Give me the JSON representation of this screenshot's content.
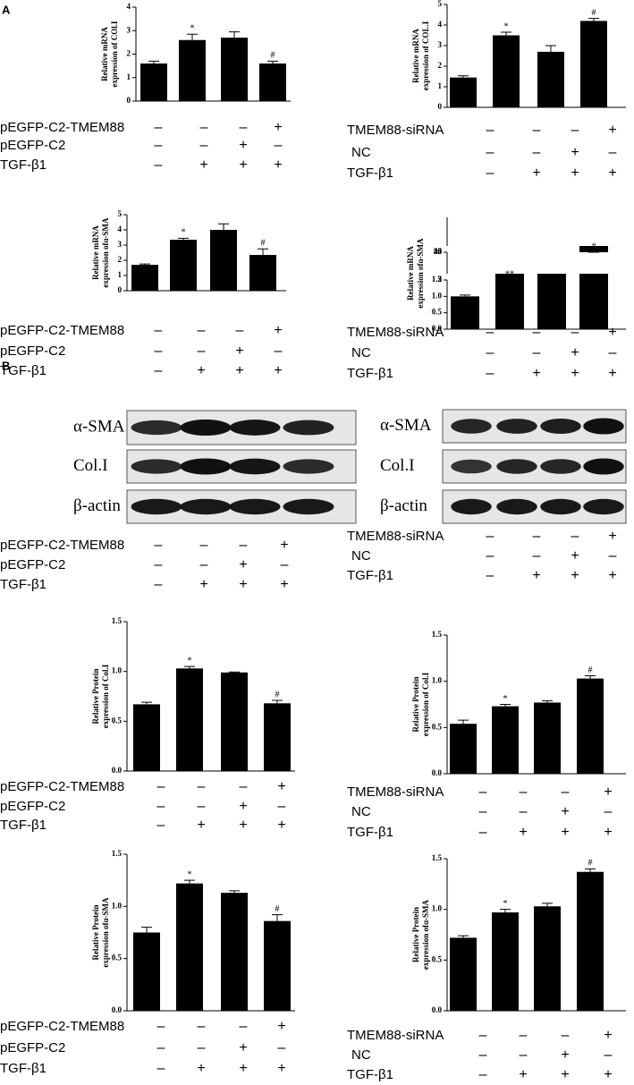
{
  "panel_labels": [
    "A",
    "B"
  ],
  "chart_data": [
    {
      "type": "bar",
      "ylabel": [
        "Relative mRNA",
        "expression of COl.I"
      ],
      "color": "#000000",
      "values": [
        1.6,
        2.6,
        2.7,
        1.6
      ],
      "errors": [
        0.1,
        0.25,
        0.25,
        0.1
      ],
      "annotations": [
        null,
        "*",
        null,
        "#"
      ],
      "ylim": [
        0,
        4
      ],
      "yticks": [
        0,
        1,
        2,
        3,
        4
      ],
      "treatments": [
        {
          "name": "pEGFP-C2-TMEM88",
          "signs": [
            "–",
            "–",
            "–",
            "+"
          ]
        },
        {
          "name": "pEGFP-C2",
          "signs": [
            "–",
            "–",
            "+",
            "–"
          ]
        },
        {
          "name": "TGF-β1",
          "signs": [
            "–",
            "+",
            "+",
            "+"
          ]
        }
      ]
    },
    {
      "type": "bar",
      "ylabel": [
        "Relative mRNA",
        "expression of COL.I"
      ],
      "color": "#000000",
      "values": [
        1.45,
        3.5,
        2.7,
        4.2
      ],
      "errors": [
        0.08,
        0.15,
        0.3,
        0.12
      ],
      "annotations": [
        null,
        "*",
        null,
        "#"
      ],
      "ylim": [
        0,
        5
      ],
      "yticks": [
        0,
        1,
        2,
        3,
        4,
        5
      ],
      "treatments": [
        {
          "name": "TMEM88-siRNA",
          "signs": [
            "–",
            "–",
            "–",
            "+"
          ]
        },
        {
          "name": "NC",
          "signs": [
            "–",
            "–",
            "+",
            "–"
          ]
        },
        {
          "name": "TGF-β1",
          "signs": [
            "–",
            "+",
            "+",
            "+"
          ]
        }
      ]
    },
    {
      "type": "bar",
      "ylabel": [
        "Relative mRNA",
        "expression ofα-SMA"
      ],
      "color": "#000000",
      "values": [
        1.7,
        3.35,
        4.0,
        2.35
      ],
      "errors": [
        0.06,
        0.1,
        0.4,
        0.4
      ],
      "annotations": [
        null,
        "*",
        null,
        "#"
      ],
      "ylim": [
        0,
        5
      ],
      "yticks": [
        0,
        1,
        2,
        3,
        4,
        5
      ],
      "treatments": [
        {
          "name": "pEGFP-C2-TMEM88",
          "signs": [
            "–",
            "–",
            "–",
            "+"
          ]
        },
        {
          "name": "pEGFP-C2",
          "signs": [
            "–",
            "–",
            "+",
            "–"
          ]
        },
        {
          "name": "TGF-β1",
          "signs": [
            "–",
            "+",
            "+",
            "+"
          ]
        }
      ]
    },
    {
      "type": "bar",
      "ylabel": [
        "Relative mRNA",
        "expression ofα-SMA"
      ],
      "color": "#000000",
      "values": [
        1.0,
        3.3,
        3.2,
        35
      ],
      "errors": [
        0.04,
        0.05,
        0.05,
        5
      ],
      "annotations": [
        null,
        "**",
        null,
        "#"
      ],
      "ylim": [
        0,
        50
      ],
      "axis_breaks": [
        [
          0,
          1.5
        ],
        [
          2,
          3.5
        ],
        [
          30,
          50
        ]
      ],
      "yticks": [
        {
          "value": 0,
          "label": "0.0"
        },
        0.5,
        {
          "value": 1,
          "label": "1.0"
        },
        1.5,
        2,
        3,
        30,
        35,
        40,
        45,
        50
      ],
      "treatments": [
        {
          "name": "TMEM88-siRNA",
          "signs": [
            "–",
            "–",
            "–",
            "+"
          ]
        },
        {
          "name": "NC",
          "signs": [
            "–",
            "–",
            "+",
            "–"
          ]
        },
        {
          "name": "TGF-β1",
          "signs": [
            "–",
            "+",
            "+",
            "+"
          ]
        }
      ]
    },
    {
      "type": "bar",
      "ylabel": [
        "Relative Protein",
        "expression of Col.I"
      ],
      "color": "#000000",
      "values": [
        0.67,
        1.03,
        0.99,
        0.68
      ],
      "errors": [
        0.02,
        0.02,
        0.005,
        0.03
      ],
      "annotations": [
        null,
        "*",
        null,
        "#"
      ],
      "ylim": [
        0,
        1.5
      ],
      "yticks": [
        {
          "value": 0,
          "label": "0.0"
        },
        0.5,
        {
          "value": 1,
          "label": "1.0"
        },
        1.5
      ],
      "treatments": [
        {
          "name": "pEGFP-C2-TMEM88",
          "signs": [
            "–",
            "–",
            "–",
            "+"
          ]
        },
        {
          "name": "pEGFP-C2",
          "signs": [
            "–",
            "–",
            "+",
            "–"
          ]
        },
        {
          "name": "TGF-β1",
          "signs": [
            "–",
            "+",
            "+",
            "+"
          ]
        }
      ]
    },
    {
      "type": "bar",
      "ylabel": [
        "Relative Protein",
        "expression of Col.I"
      ],
      "color": "#000000",
      "values": [
        0.54,
        0.73,
        0.77,
        1.03
      ],
      "errors": [
        0.04,
        0.02,
        0.02,
        0.03
      ],
      "annotations": [
        null,
        "*",
        null,
        "#"
      ],
      "ylim": [
        0,
        1.5
      ],
      "yticks": [
        {
          "value": 0,
          "label": "0.0"
        },
        0.5,
        {
          "value": 1,
          "label": "1.0"
        },
        1.5
      ],
      "treatments": [
        {
          "name": "TMEM88-siRNA",
          "signs": [
            "–",
            "–",
            "–",
            "+"
          ]
        },
        {
          "name": "NC",
          "signs": [
            "–",
            "–",
            "+",
            "–"
          ]
        },
        {
          "name": "TGF-β1",
          "signs": [
            "–",
            "+",
            "+",
            "+"
          ]
        }
      ]
    },
    {
      "type": "bar",
      "ylabel": [
        "Relative Protein",
        "expression ofα-SMA"
      ],
      "color": "#000000",
      "values": [
        0.75,
        1.22,
        1.13,
        0.86
      ],
      "errors": [
        0.05,
        0.03,
        0.02,
        0.06
      ],
      "annotations": [
        null,
        "*",
        null,
        "#"
      ],
      "ylim": [
        0,
        1.5
      ],
      "yticks": [
        {
          "value": 0,
          "label": "0.0"
        },
        0.5,
        {
          "value": 1,
          "label": "1.0"
        },
        1.5
      ],
      "treatments": [
        {
          "name": "pEGFP-C2-TMEM88",
          "signs": [
            "–",
            "–",
            "–",
            "+"
          ]
        },
        {
          "name": "pEGFP-C2",
          "signs": [
            "–",
            "–",
            "+",
            "–"
          ]
        },
        {
          "name": "TGF-β1",
          "signs": [
            "–",
            "+",
            "+",
            "+"
          ]
        }
      ]
    },
    {
      "type": "bar",
      "ylabel": [
        "Relative Protein",
        "expression ofα-SMA"
      ],
      "color": "#000000",
      "values": [
        0.72,
        0.97,
        1.03,
        1.37
      ],
      "errors": [
        0.02,
        0.03,
        0.03,
        0.03
      ],
      "annotations": [
        null,
        "*",
        null,
        "#"
      ],
      "ylim": [
        0,
        1.5
      ],
      "yticks": [
        {
          "value": 0,
          "label": "0.0"
        },
        0.5,
        {
          "value": 1,
          "label": "1.0"
        },
        1.5
      ],
      "treatments": [
        {
          "name": "TMEM88-siRNA",
          "signs": [
            "–",
            "–",
            "–",
            "+"
          ]
        },
        {
          "name": "NC",
          "signs": [
            "–",
            "–",
            "+",
            "–"
          ]
        },
        {
          "name": "TGF-β1",
          "signs": [
            "–",
            "+",
            "+",
            "+"
          ]
        }
      ]
    }
  ],
  "blots": [
    {
      "rows": [
        "α-SMA",
        "Col.I",
        "β-actin"
      ],
      "treatments": [
        {
          "name": "pEGFP-C2-TMEM88",
          "signs": [
            "–",
            "–",
            "–",
            "+"
          ]
        },
        {
          "name": "pEGFP-C2",
          "signs": [
            "–",
            "–",
            "+",
            "–"
          ]
        },
        {
          "name": "TGF-β1",
          "signs": [
            "–",
            "+",
            "+",
            "+"
          ]
        }
      ]
    },
    {
      "rows": [
        "α-SMA",
        "Col.I",
        "β-actin"
      ],
      "treatments": [
        {
          "name": "TMEM88-siRNA",
          "signs": [
            "–",
            "–",
            "–",
            "+"
          ]
        },
        {
          "name": "NC",
          "signs": [
            "–",
            "–",
            "+",
            "–"
          ]
        },
        {
          "name": "TGF-β1",
          "signs": [
            "–",
            "+",
            "+",
            "+"
          ]
        }
      ]
    }
  ]
}
